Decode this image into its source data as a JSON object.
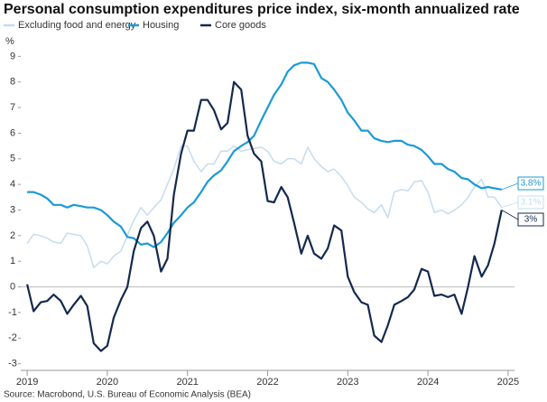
{
  "chart_data": {
    "type": "line",
    "title": "Personal consumption expenditures price index, six-month annualized rate",
    "y_label": "%",
    "source": "Source: Macrobond, U.S. Bureau of Economic Analysis (BEA)",
    "x": [
      2019.0,
      2019.08,
      2019.17,
      2019.25,
      2019.33,
      2019.42,
      2019.5,
      2019.58,
      2019.67,
      2019.75,
      2019.83,
      2019.92,
      2020.0,
      2020.08,
      2020.17,
      2020.25,
      2020.33,
      2020.42,
      2020.5,
      2020.58,
      2020.67,
      2020.75,
      2020.83,
      2020.92,
      2021.0,
      2021.08,
      2021.17,
      2021.25,
      2021.33,
      2021.42,
      2021.5,
      2021.58,
      2021.67,
      2021.75,
      2021.83,
      2021.92,
      2022.0,
      2022.08,
      2022.17,
      2022.25,
      2022.33,
      2022.42,
      2022.5,
      2022.58,
      2022.67,
      2022.75,
      2022.83,
      2022.92,
      2023.0,
      2023.08,
      2023.17,
      2023.25,
      2023.33,
      2023.42,
      2023.5,
      2023.58,
      2023.67,
      2023.75,
      2023.83,
      2023.92,
      2024.0,
      2024.08,
      2024.17,
      2024.25,
      2024.33,
      2024.42,
      2024.5,
      2024.58,
      2024.67,
      2024.75,
      2024.83,
      2024.92
    ],
    "series": [
      {
        "name": "Excluding food and energy",
        "color": "#c6dcee",
        "end_label": "3.1%",
        "values": [
          1.7,
          2.05,
          2.0,
          1.9,
          1.75,
          1.7,
          2.1,
          2.05,
          2.0,
          1.6,
          0.75,
          1.0,
          0.9,
          1.2,
          1.4,
          2.0,
          2.6,
          3.1,
          2.8,
          3.1,
          3.4,
          4.0,
          4.6,
          5.5,
          5.5,
          4.9,
          4.5,
          4.8,
          4.8,
          5.3,
          5.3,
          5.5,
          5.3,
          5.35,
          5.4,
          5.45,
          5.3,
          4.9,
          4.8,
          5.0,
          5.0,
          4.8,
          5.45,
          5.0,
          4.7,
          4.5,
          4.6,
          4.3,
          3.95,
          3.5,
          3.3,
          3.05,
          2.9,
          3.2,
          2.7,
          3.7,
          3.8,
          3.75,
          4.1,
          4.15,
          3.7,
          2.9,
          3.0,
          2.85,
          3.0,
          3.2,
          3.5,
          3.9,
          4.2,
          3.5,
          3.5,
          3.1
        ]
      },
      {
        "name": "Housing",
        "color": "#1b9ad6",
        "end_label": "3.8%",
        "values": [
          3.7,
          3.7,
          3.6,
          3.45,
          3.2,
          3.2,
          3.1,
          3.2,
          3.15,
          3.1,
          3.1,
          3.0,
          2.8,
          2.55,
          2.35,
          1.95,
          1.9,
          1.65,
          1.7,
          1.55,
          1.75,
          2.1,
          2.5,
          2.8,
          3.1,
          3.3,
          3.7,
          4.1,
          4.35,
          4.55,
          4.9,
          5.3,
          5.5,
          5.65,
          5.9,
          6.5,
          7.0,
          7.5,
          7.9,
          8.4,
          8.65,
          8.75,
          8.75,
          8.7,
          8.15,
          8.0,
          7.7,
          7.3,
          6.8,
          6.5,
          6.1,
          6.1,
          5.8,
          5.7,
          5.65,
          5.7,
          5.7,
          5.55,
          5.5,
          5.35,
          5.1,
          4.8,
          4.8,
          4.6,
          4.5,
          4.25,
          4.2,
          4.0,
          3.85,
          3.9,
          3.85,
          3.8
        ]
      },
      {
        "name": "Core goods",
        "color": "#14294d",
        "end_label": "3%",
        "values": [
          0.1,
          -0.95,
          -0.6,
          -0.55,
          -0.3,
          -0.55,
          -1.05,
          -0.7,
          -0.35,
          -0.75,
          -2.2,
          -2.5,
          -2.3,
          -1.2,
          -0.5,
          0.0,
          1.4,
          2.3,
          2.55,
          2.0,
          0.6,
          1.1,
          3.6,
          5.2,
          6.1,
          6.1,
          7.3,
          7.3,
          6.9,
          6.15,
          6.4,
          8.0,
          7.7,
          5.9,
          5.2,
          4.9,
          3.35,
          3.3,
          3.9,
          3.5,
          2.5,
          1.3,
          2.0,
          1.3,
          1.1,
          1.5,
          2.4,
          2.2,
          0.4,
          -0.2,
          -0.6,
          -0.7,
          -1.9,
          -2.15,
          -1.5,
          -0.7,
          -0.55,
          -0.4,
          -0.1,
          0.7,
          0.6,
          -0.35,
          -0.3,
          -0.4,
          -0.3,
          -1.05,
          0.0,
          1.2,
          0.4,
          0.85,
          1.7,
          3.0
        ]
      }
    ],
    "xlim": [
      2018.92,
      2025.08
    ],
    "xticks": [
      2019,
      2020,
      2021,
      2022,
      2023,
      2024,
      2025
    ],
    "ylim": [
      -3.4,
      9.4
    ],
    "yticks": [
      9,
      8,
      7,
      6,
      5,
      4,
      3,
      2,
      1,
      0,
      -1,
      -2,
      -3
    ]
  }
}
